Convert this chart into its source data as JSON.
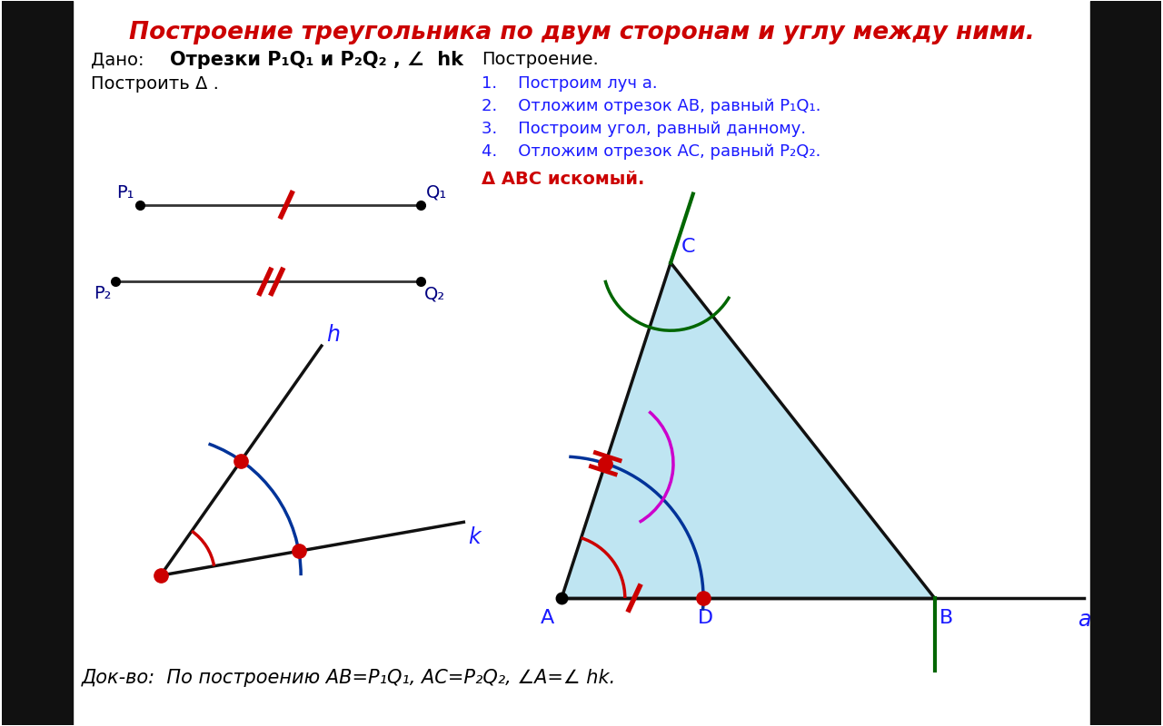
{
  "title": "Построение треугольника по двум сторонам и углу между ними.",
  "bg_color": "#ffffff",
  "title_color": "#cc0000",
  "blue_color": "#1a1aff",
  "dark_blue": "#000080",
  "red_color": "#cc0000",
  "black_color": "#000000",
  "green_color": "#007700",
  "dark_green": "#006600",
  "magenta_color": "#cc00cc",
  "cyan_fill": "#aaddee",
  "dado_text": "Дано:",
  "dado_bold": "Отрезки P₁Q₁ и P₂Q₂ , ∠  hk",
  "postroit_text": "Построить Δ .",
  "postroenie_text": "Построение.",
  "step1": "1.    Построим луч a.",
  "step2": "2.    Отложим отрезок AB, равный P₁Q₁.",
  "step3": "3.    Построим угол, равный данному.",
  "step4": "4.    Отложим отрезок AC, равный P₂Q₂.",
  "abc_text": "Δ ABC искомый.",
  "dokvo_text": "Док-во:  По построению AB=P₁Q₁, AC=P₂Q₂, ∠A=∠ hk."
}
